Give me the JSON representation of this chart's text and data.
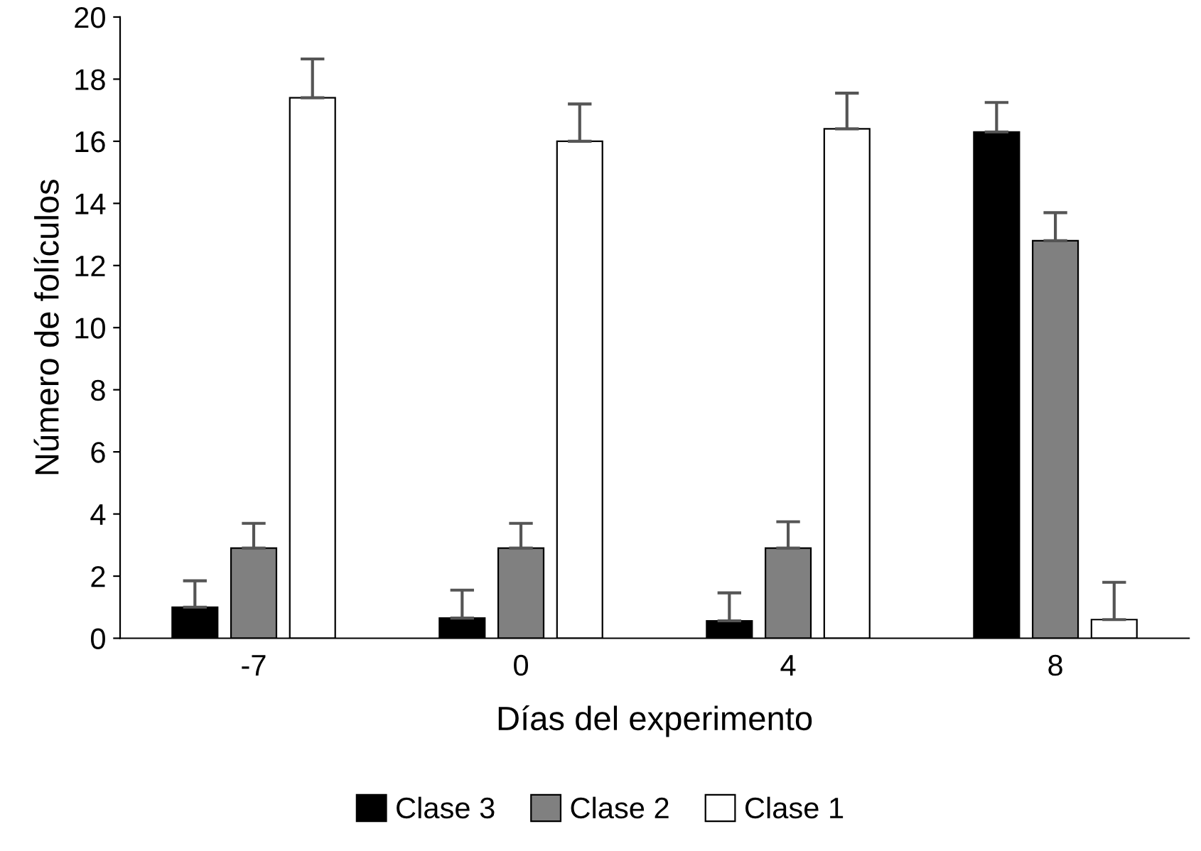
{
  "chart_data": {
    "type": "bar",
    "xlabel": "Días del experimento",
    "ylabel": "Número de folículos",
    "categories": [
      "-7",
      "0",
      "4",
      "8"
    ],
    "series": [
      {
        "name": "Clase 3",
        "color": "#000000",
        "values": [
          1.0,
          0.65,
          0.56,
          16.3
        ],
        "errors": [
          [
            1.0,
            1.85
          ],
          [
            0.65,
            1.55
          ],
          [
            0.56,
            1.46
          ],
          [
            16.3,
            17.25
          ]
        ]
      },
      {
        "name": "Clase 2",
        "color": "#808080",
        "values": [
          2.9,
          2.9,
          2.9,
          12.8
        ],
        "errors": [
          [
            2.9,
            3.7
          ],
          [
            2.9,
            3.7
          ],
          [
            2.9,
            3.75
          ],
          [
            12.8,
            13.7
          ]
        ]
      },
      {
        "name": "Clase 1",
        "color": "#ffffff",
        "values": [
          17.4,
          16.0,
          16.4,
          0.6
        ],
        "errors": [
          [
            17.4,
            18.65
          ],
          [
            16.0,
            17.2
          ],
          [
            16.4,
            17.55
          ],
          [
            0.6,
            1.8
          ]
        ]
      }
    ],
    "ylim": [
      0,
      20
    ],
    "yticks": [
      0,
      2,
      4,
      6,
      8,
      10,
      12,
      14,
      16,
      18,
      20
    ],
    "grid": false,
    "legend": "bottom"
  }
}
